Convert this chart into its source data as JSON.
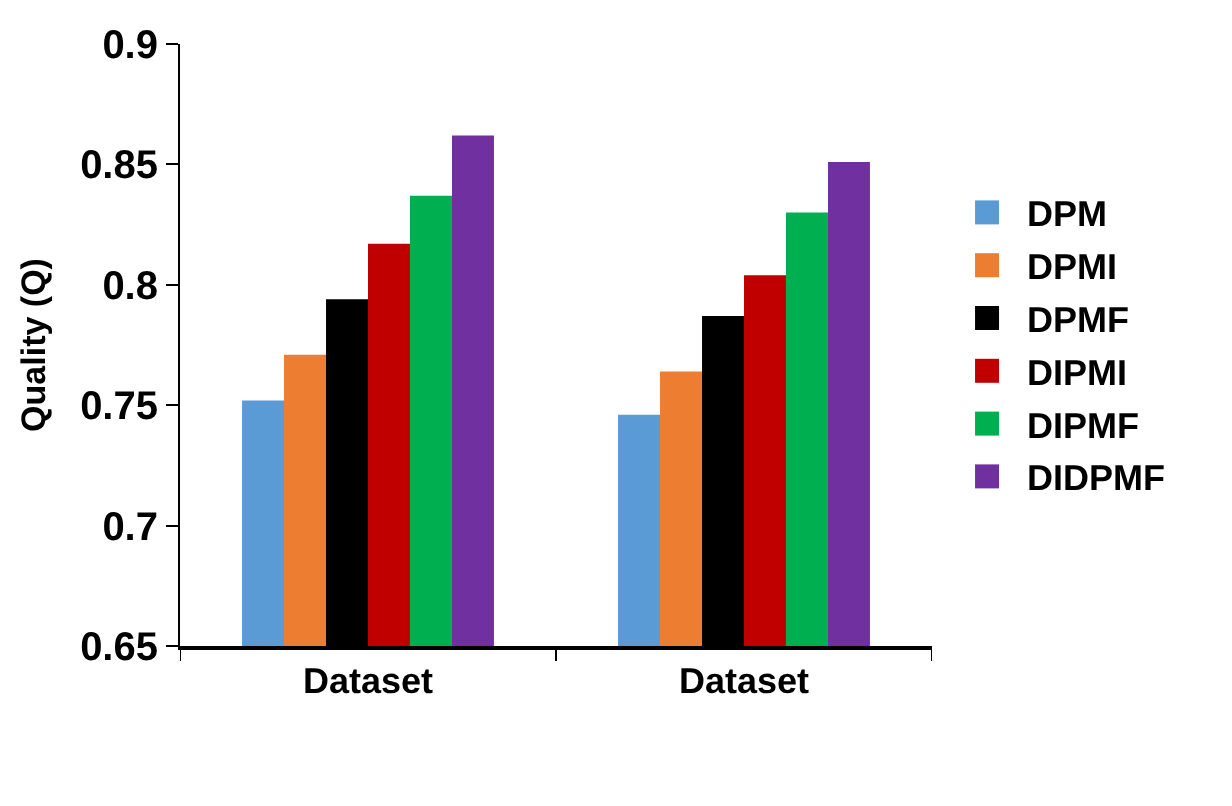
{
  "chart_data": {
    "type": "bar",
    "ylabel": "Quality (Q)",
    "categories": [
      "Dataset",
      "Dataset"
    ],
    "series": [
      {
        "name": "DPM",
        "color": "#5b9bd5",
        "values": [
          0.752,
          0.746
        ]
      },
      {
        "name": "DPMI",
        "color": "#ed7d31",
        "values": [
          0.771,
          0.764
        ]
      },
      {
        "name": "DPMF",
        "color": "#000000",
        "values": [
          0.794,
          0.787
        ]
      },
      {
        "name": "DIPMI",
        "color": "#c00000",
        "values": [
          0.817,
          0.804
        ]
      },
      {
        "name": "DIPMF",
        "color": "#00b050",
        "values": [
          0.837,
          0.83
        ]
      },
      {
        "name": "DIDPMF",
        "color": "#7030a0",
        "values": [
          0.862,
          0.851
        ]
      }
    ],
    "ylim": [
      0.65,
      0.9
    ],
    "yticks": [
      0.65,
      0.7,
      0.75,
      0.8,
      0.85,
      0.9
    ],
    "grid": false,
    "legend": "right"
  }
}
